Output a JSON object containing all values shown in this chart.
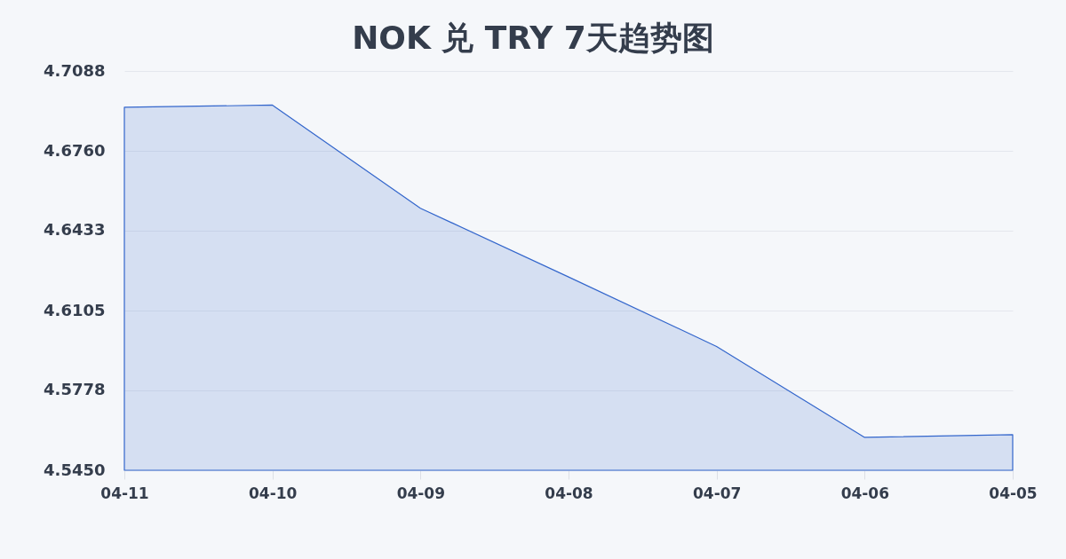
{
  "chart_data": {
    "type": "area",
    "title": "NOK 兑 TRY 7天趋势图",
    "categories": [
      "04-11",
      "04-10",
      "04-09",
      "04-08",
      "04-07",
      "04-06",
      "04-05"
    ],
    "series": [
      {
        "color": "#3366cc",
        "values": [
          4.6939,
          4.6948,
          4.6525,
          4.6243,
          4.5958,
          4.5585,
          4.5596
        ]
      }
    ],
    "ylim": [
      4.545,
      4.7088
    ],
    "yticks": [
      {
        "value": 4.545,
        "label": "4.5450"
      },
      4.5778,
      4.6105,
      4.6433,
      {
        "value": 4.676,
        "label": "4.6760"
      },
      4.7088
    ],
    "grid": "y"
  }
}
